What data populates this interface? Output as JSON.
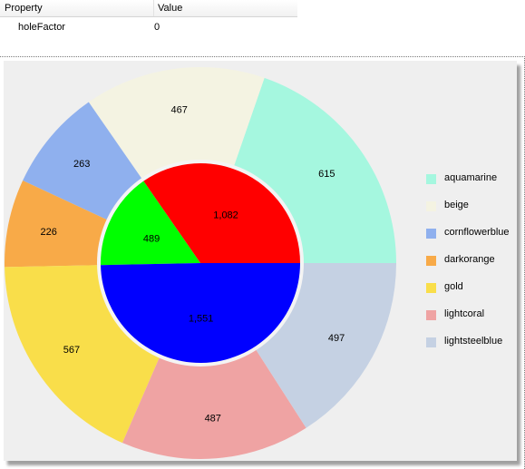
{
  "property_grid": {
    "headers": [
      "Property",
      "Value"
    ],
    "rows": [
      {
        "name": "holeFactor",
        "value": "0"
      }
    ]
  },
  "chart_data": {
    "type": "pie",
    "hole_factor": 0,
    "outer_ring": [
      {
        "label": "aquamarine",
        "value": 615,
        "color": "#a5f7df"
      },
      {
        "label": "beige",
        "value": 467,
        "color": "#f4f3e2"
      },
      {
        "label": "cornflowerblue",
        "value": 263,
        "color": "#8fb0ee"
      },
      {
        "label": "darkorange",
        "value": 226,
        "color": "#f8aa48"
      },
      {
        "label": "gold",
        "value": 567,
        "color": "#f9de4a"
      },
      {
        "label": "lightcoral",
        "value": 487,
        "color": "#efa3a3"
      },
      {
        "label": "lightsteelblue",
        "value": 497,
        "color": "#c5d1e3"
      }
    ],
    "inner_pie": [
      {
        "value_label": "1,082",
        "value": 1082,
        "color": "#ff0000"
      },
      {
        "value_label": "489",
        "value": 489,
        "color": "#00ff00"
      },
      {
        "value_label": "1,551",
        "value": 1551,
        "color": "#0000ff"
      }
    ],
    "legend_position": "right"
  },
  "colors": {
    "panel_background": "#efefef",
    "inner_border": "#f4f4f4"
  }
}
